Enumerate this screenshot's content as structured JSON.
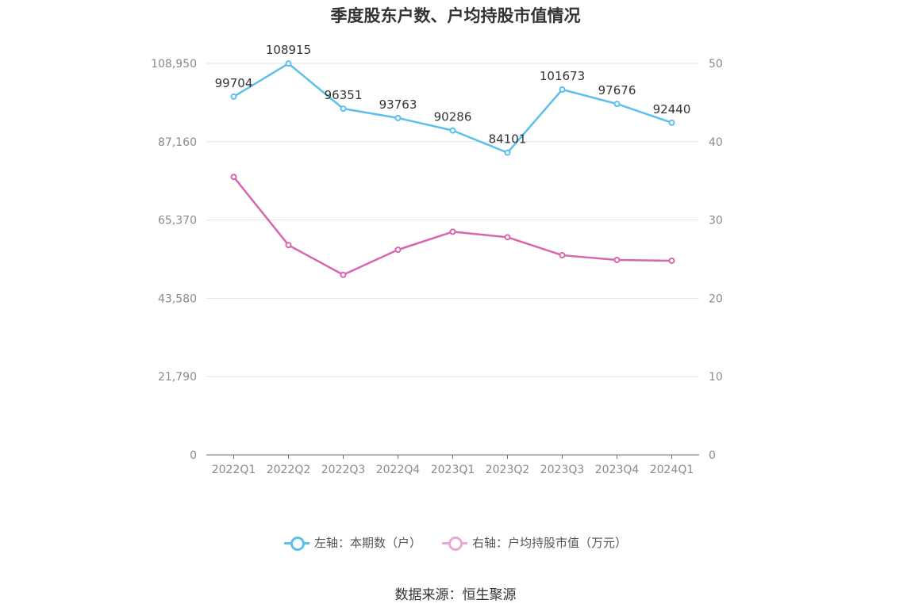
{
  "chart_data": {
    "type": "line",
    "title": "季度股东户数、户均持股市值情况",
    "categories": [
      "2022Q1",
      "2022Q2",
      "2022Q3",
      "2022Q4",
      "2023Q1",
      "2023Q2",
      "2023Q3",
      "2023Q4",
      "2024Q1"
    ],
    "y_left": {
      "min": 0,
      "max": 108950,
      "ticks": [
        0,
        21790,
        43580,
        65370,
        87160,
        108950
      ],
      "tick_labels": [
        "0",
        "21,790",
        "43,580",
        "65,370",
        "87,160",
        "108,950"
      ]
    },
    "y_right": {
      "min": 0,
      "max": 50,
      "ticks": [
        0,
        10,
        20,
        30,
        40,
        50
      ],
      "tick_labels": [
        "0",
        "10",
        "20",
        "30",
        "40",
        "50"
      ]
    },
    "series": [
      {
        "name": "左轴：本期数（户）",
        "axis": "left",
        "color": "#5bc0eb",
        "values": [
          99704,
          108915,
          96351,
          93763,
          90286,
          84101,
          101673,
          97676,
          92440
        ],
        "show_labels": true
      },
      {
        "name": "右轴：户均持股市值（万元）",
        "axis": "right",
        "color": "#d666ad",
        "legend_color": "#e8a8d4",
        "values": [
          35.5,
          26.8,
          23.0,
          26.2,
          28.5,
          27.8,
          25.5,
          24.9,
          24.8
        ],
        "show_labels": false
      }
    ],
    "grid": true,
    "legend_position": "bottom"
  },
  "source": "数据来源：恒生聚源"
}
